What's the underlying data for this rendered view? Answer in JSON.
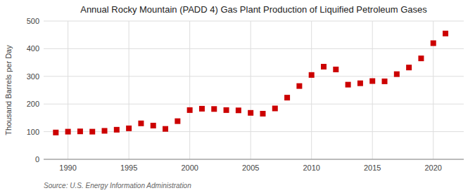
{
  "chart_data": {
    "type": "scatter",
    "title": "Annual Rocky Mountain (PADD 4) Gas Plant Production of Liquified Petroleum Gases",
    "ylabel": "Thousand Barrels per Day",
    "source": "Source: U.S. Energy Information Administration",
    "x": [
      1989,
      1990,
      1991,
      1992,
      1993,
      1994,
      1995,
      1996,
      1997,
      1998,
      1999,
      2000,
      2001,
      2002,
      2003,
      2004,
      2005,
      2006,
      2007,
      2008,
      2009,
      2010,
      2011,
      2012,
      2013,
      2014,
      2015,
      2016,
      2017,
      2018,
      2019,
      2020,
      2021
    ],
    "values": [
      97,
      100,
      101,
      100,
      103,
      107,
      112,
      130,
      122,
      110,
      138,
      178,
      183,
      182,
      178,
      177,
      168,
      165,
      184,
      223,
      265,
      305,
      335,
      325,
      270,
      275,
      283,
      282,
      308,
      332,
      365,
      420,
      455
    ],
    "color": "#cc0000",
    "marker": "square",
    "xlim": [
      1988.0,
      2022.5
    ],
    "ylim": [
      0,
      500
    ],
    "yticks": [
      0,
      100,
      200,
      300,
      400,
      500
    ],
    "xticks": [
      1990,
      1995,
      2000,
      2005,
      2010,
      2015,
      2020
    ],
    "grid": true
  }
}
